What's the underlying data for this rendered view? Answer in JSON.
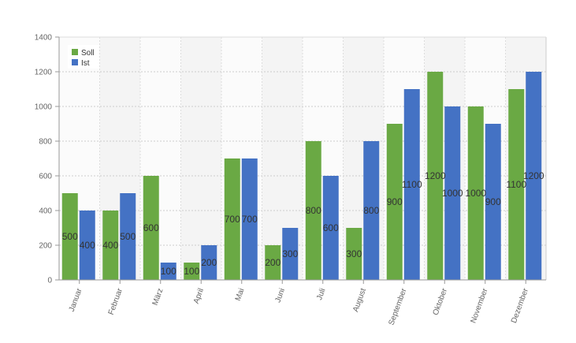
{
  "chart_data": {
    "type": "bar",
    "categories": [
      "Januar",
      "Februar",
      "März",
      "April",
      "Mai",
      "Juni",
      "Juli",
      "August",
      "September",
      "Oktober",
      "November",
      "Dezember"
    ],
    "series": [
      {
        "name": "Soll",
        "color": "#6aa944",
        "values": [
          500,
          400,
          600,
          100,
          700,
          200,
          800,
          300,
          900,
          1200,
          1000,
          1100
        ]
      },
      {
        "name": "Ist",
        "color": "#4472c4",
        "values": [
          400,
          500,
          100,
          200,
          700,
          300,
          600,
          800,
          1100,
          1000,
          900,
          1200
        ]
      }
    ],
    "ylim": [
      0,
      1400
    ],
    "yticks": [
      0,
      200,
      400,
      600,
      800,
      1000,
      1200,
      1400
    ],
    "grid": true,
    "legend": "top-left",
    "data_labels": true
  }
}
